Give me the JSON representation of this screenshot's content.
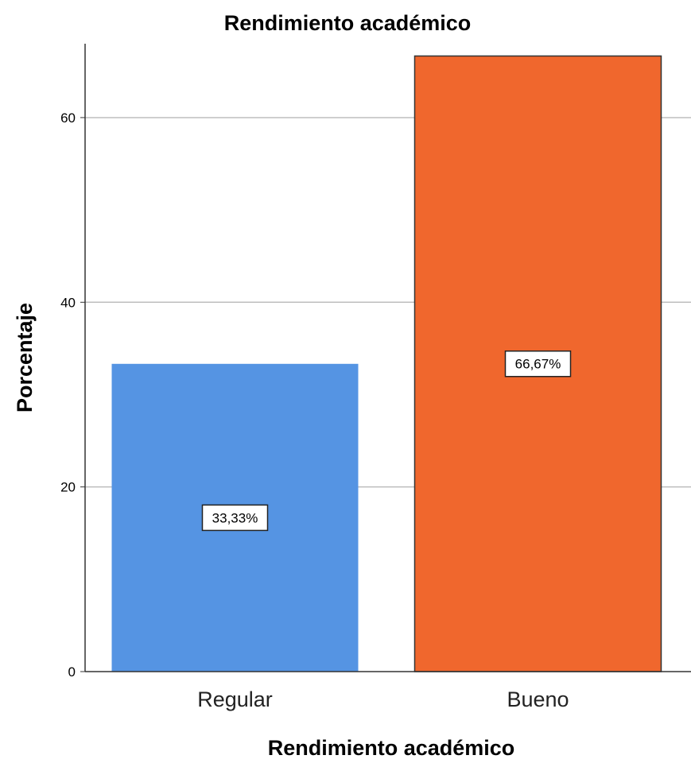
{
  "chart_data": {
    "type": "bar",
    "title": "Rendimiento académico",
    "xlabel": "Rendimiento académico",
    "ylabel": "Porcentaje",
    "categories": [
      "Regular",
      "Bueno"
    ],
    "values": [
      33.33,
      66.67
    ],
    "data_labels": [
      "33,33%",
      "66,67%"
    ],
    "colors": [
      "#5594e3",
      "#f0672d"
    ],
    "ylim": [
      0,
      68
    ],
    "yticks": [
      0,
      20,
      40,
      60
    ],
    "grid": true,
    "legend": "none"
  }
}
